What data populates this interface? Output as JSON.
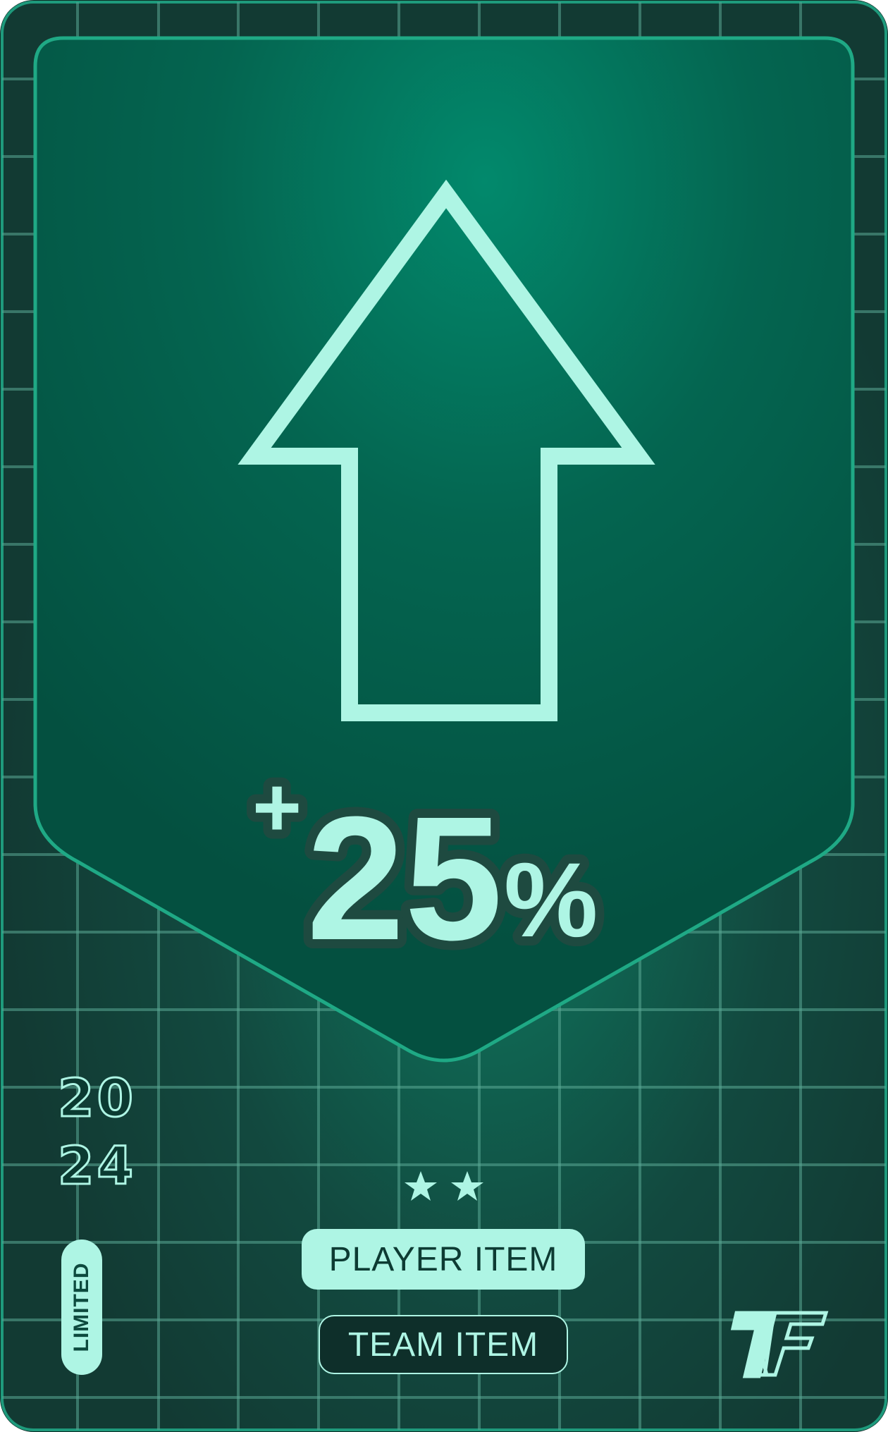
{
  "card": {
    "boost_value": "+25%",
    "boost_sign": "+",
    "boost_number": "25",
    "boost_unit": "%",
    "year_top": "20",
    "year_bottom": "24",
    "rarity": "LIMITED",
    "stars": 2,
    "primary_tag": "PLAYER ITEM",
    "secondary_tag": "TEAM ITEM",
    "icon": "arrow-up-icon",
    "logo": "7f-logo",
    "colors": {
      "background": "#123d35",
      "frame": "#1e9a7c",
      "accent": "#aef5e4",
      "shield": "#045a48"
    }
  }
}
